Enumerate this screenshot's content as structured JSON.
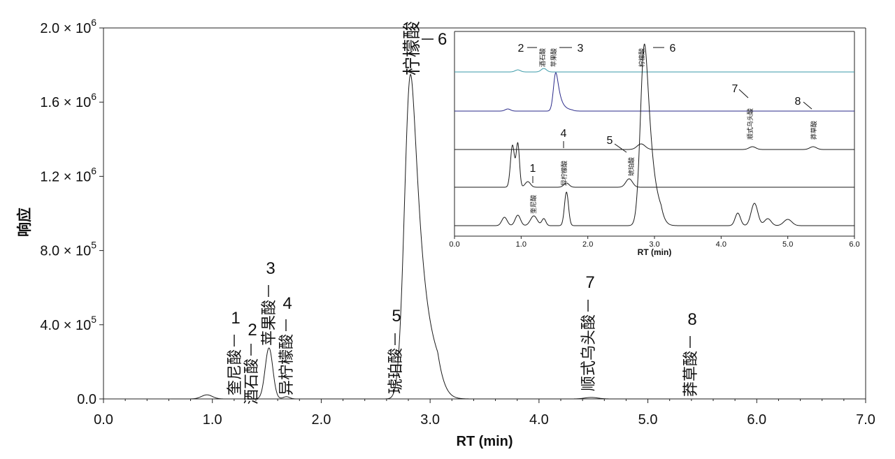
{
  "chart_data": [
    {
      "type": "line",
      "xlabel": "RT (min)",
      "ylabel": "响应",
      "xlim": [
        0,
        7
      ],
      "ylim": [
        0,
        2000000
      ],
      "x_ticks": [
        "0.0",
        "1.0",
        "2.0",
        "3.0",
        "4.0",
        "5.0",
        "6.0",
        "7.0"
      ],
      "y_ticks": [
        {
          "mantissa": "0.0",
          "exp": ""
        },
        {
          "mantissa": "4.0 × 10",
          "exp": "5"
        },
        {
          "mantissa": "8.0 × 10",
          "exp": "5"
        },
        {
          "mantissa": "1.2 × 10",
          "exp": "6"
        },
        {
          "mantissa": "1.6 × 10",
          "exp": "6"
        },
        {
          "mantissa": "2.0 × 10",
          "exp": "6"
        }
      ],
      "grid": false,
      "series": [
        {
          "color": "#1a1a1a",
          "peaks": [
            {
              "rt": 0.95,
              "height": 22000,
              "width": 0.05
            },
            {
              "rt": 1.52,
              "height": 275000,
              "width": 0.035
            },
            {
              "rt": 1.68,
              "height": 12000,
              "width": 0.03
            },
            {
              "rt": 2.82,
              "height": 1750000,
              "width": 0.055,
              "tail": 0.12
            },
            {
              "rt": 4.48,
              "height": 8000,
              "width": 0.06
            }
          ]
        }
      ],
      "annotations": [
        {
          "num": "1",
          "name": "奎尼酸",
          "rt": 1.19
        },
        {
          "num": "2",
          "name": "酒石酸",
          "rt": 1.34
        },
        {
          "num": "3",
          "name": "苹果酸",
          "rt": 1.52
        },
        {
          "num": "4",
          "name": "异柠檬酸",
          "rt": 1.68
        },
        {
          "num": "5",
          "name": "琥珀酸",
          "rt": 2.68
        },
        {
          "num": "6",
          "name": "柠檬酸",
          "rt": 2.82
        },
        {
          "num": "7",
          "name": "顺式乌头酸",
          "rt": 4.47
        },
        {
          "num": "8",
          "name": "莽草酸",
          "rt": 5.38
        }
      ]
    },
    {
      "type": "line",
      "xlabel": "RT (min)",
      "xlim": [
        0,
        6
      ],
      "x_ticks": [
        "0.0",
        "1.0",
        "2.0",
        "3.0",
        "4.0",
        "5.0",
        "6.0"
      ],
      "traces": [
        {
          "color": "#3a9aa8",
          "peaks": [
            {
              "rt": 0.95,
              "height": 3,
              "width": 0.04
            },
            {
              "rt": 1.34,
              "height": 5,
              "width": 0.04
            }
          ]
        },
        {
          "color": "#2a2a8a",
          "peaks": [
            {
              "rt": 0.8,
              "height": 3,
              "width": 0.04
            },
            {
              "rt": 1.52,
              "height": 55,
              "width": 0.035,
              "tail": 0.1
            }
          ]
        },
        {
          "color": "#1a1a1a",
          "peaks": [
            {
              "rt": 2.8,
              "height": 8,
              "width": 0.06
            },
            {
              "rt": 4.47,
              "height": 4,
              "width": 0.05
            },
            {
              "rt": 5.38,
              "height": 4,
              "width": 0.05
            }
          ]
        },
        {
          "color": "#1a1a1a",
          "peaks": [
            {
              "rt": 0.87,
              "height": 60,
              "width": 0.03
            },
            {
              "rt": 0.95,
              "height": 62,
              "width": 0.025
            },
            {
              "rt": 1.1,
              "height": 8,
              "width": 0.04
            },
            {
              "rt": 1.68,
              "height": 6,
              "width": 0.04
            },
            {
              "rt": 2.62,
              "height": 12,
              "width": 0.05
            }
          ]
        },
        {
          "color": "#1a1a1a",
          "peaks": [
            {
              "rt": 0.75,
              "height": 12,
              "width": 0.04
            },
            {
              "rt": 0.95,
              "height": 15,
              "width": 0.04
            },
            {
              "rt": 1.19,
              "height": 14,
              "width": 0.05
            },
            {
              "rt": 1.34,
              "height": 10,
              "width": 0.03
            },
            {
              "rt": 1.68,
              "height": 48,
              "width": 0.03
            },
            {
              "rt": 2.85,
              "height": 260,
              "width": 0.06,
              "tail": 0.1
            },
            {
              "rt": 4.25,
              "height": 18,
              "width": 0.04
            },
            {
              "rt": 4.5,
              "height": 32,
              "width": 0.05
            },
            {
              "rt": 4.7,
              "height": 10,
              "width": 0.05
            },
            {
              "rt": 5.0,
              "height": 9,
              "width": 0.06
            }
          ]
        }
      ],
      "annotations": [
        {
          "num": "1",
          "name": "奎尼酸",
          "rt": 1.19
        },
        {
          "num": "2",
          "name": "酒石酸",
          "rt": 1.34
        },
        {
          "num": "3",
          "name": "苹果酸",
          "rt": 1.52
        },
        {
          "num": "4",
          "name": "异柠檬酸",
          "rt": 1.68
        },
        {
          "num": "5",
          "name": "琥珀酸",
          "rt": 2.62
        },
        {
          "num": "6",
          "name": "柠檬酸",
          "rt": 2.85
        },
        {
          "num": "7",
          "name": "顺式乌头酸",
          "rt": 4.47
        },
        {
          "num": "8",
          "name": "莽草酸",
          "rt": 5.38
        }
      ]
    }
  ]
}
